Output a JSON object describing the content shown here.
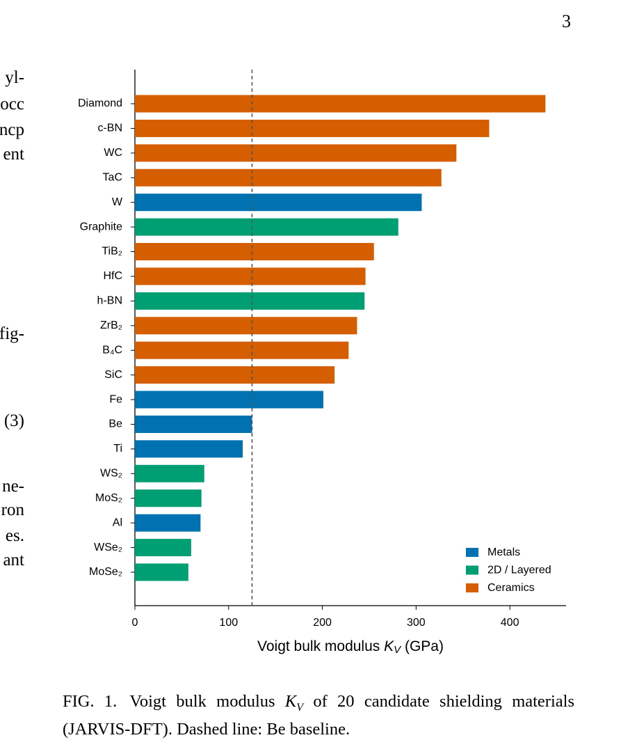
{
  "page_number": "3",
  "left_fragments": [
    "yl-",
    "occ",
    "ncp",
    "ent",
    "fig-",
    "(3)",
    "ne-",
    "ron",
    "es.",
    "ant"
  ],
  "chart_data": {
    "type": "barh",
    "categories": [
      "Diamond",
      "c-BN",
      "WC",
      "TaC",
      "W",
      "Graphite",
      "TiB₂",
      "HfC",
      "h-BN",
      "ZrB₂",
      "B₄C",
      "SiC",
      "Fe",
      "Be",
      "Ti",
      "WS₂",
      "MoS₂",
      "Al",
      "WSe₂",
      "MoSe₂"
    ],
    "series": [
      {
        "name": "Metals",
        "color": "#0072b2",
        "values": [
          null,
          null,
          null,
          null,
          306,
          null,
          null,
          null,
          null,
          null,
          null,
          null,
          201,
          125,
          115,
          null,
          null,
          70,
          null,
          null
        ]
      },
      {
        "name": "2D / Layered",
        "color": "#009e73",
        "values": [
          null,
          null,
          null,
          null,
          null,
          281,
          null,
          null,
          245,
          null,
          null,
          null,
          null,
          null,
          null,
          74,
          71,
          null,
          60,
          57
        ]
      },
      {
        "name": "Ceramics",
        "color": "#d55e00",
        "values": [
          438,
          378,
          343,
          327,
          null,
          null,
          255,
          246,
          null,
          237,
          228,
          213,
          null,
          null,
          null,
          null,
          null,
          null,
          null,
          null
        ]
      }
    ],
    "reference_line": 125,
    "xlim": [
      0,
      460
    ],
    "xticks": [
      0,
      100,
      200,
      300,
      400
    ],
    "x_label": {
      "before": "Voigt bulk modulus ",
      "symbol": "K",
      "subscript": "V",
      "after": " (GPa)"
    },
    "legend": "lower right"
  },
  "caption": {
    "label": "FIG. 1.",
    "before": "Voigt bulk modulus ",
    "symbol": "K",
    "subscript": "V",
    "after": " of 20 candidate shielding materials (JARVIS-DFT). Dashed line: Be baseline."
  }
}
